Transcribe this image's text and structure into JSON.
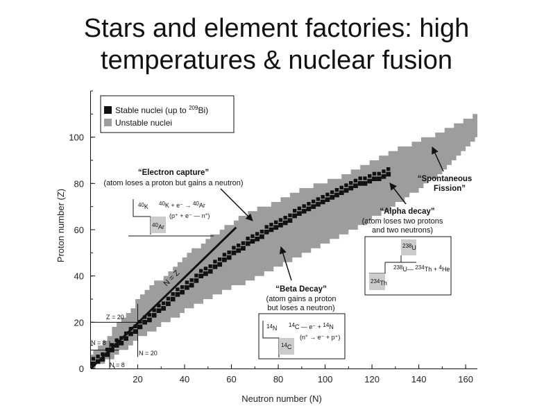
{
  "title_line1": "Stars and element factories: high",
  "title_line2": "temperatures & nuclear fusion",
  "chart_data": {
    "type": "scatter",
    "xlabel": "Neutron number (N)",
    "ylabel": "Proton number (Z)",
    "xlim": [
      0,
      165
    ],
    "ylim": [
      0,
      120
    ],
    "xticks": [
      20,
      40,
      60,
      80,
      100,
      120,
      140,
      160
    ],
    "yticks": [
      0,
      20,
      40,
      60,
      80,
      100
    ],
    "legend_position": "top-left",
    "colors": {
      "stable": "#111111",
      "unstable": "#9d9d9d",
      "box": "#cccccc"
    },
    "series": [
      {
        "name": "Stable nuclei (up to 209Bi)",
        "name_main": "Stable nuclei (up to ",
        "name_mass": "209",
        "name_sym": "Bi)",
        "n": [
          0,
          2,
          4,
          6,
          8,
          10,
          12,
          14,
          16,
          18,
          20,
          22,
          24,
          26,
          28,
          30,
          32,
          34,
          36,
          38,
          40,
          42,
          44,
          46,
          48,
          50,
          52,
          54,
          56,
          58,
          60,
          62,
          64,
          66,
          68,
          70,
          72,
          74,
          76,
          78,
          80,
          82,
          84,
          86,
          88,
          90,
          92,
          94,
          96,
          98,
          100,
          102,
          104,
          106,
          108,
          110,
          112,
          114,
          116,
          118,
          120,
          122,
          124,
          126
        ],
        "z": [
          1,
          2,
          3,
          5,
          7,
          9,
          10,
          12,
          14,
          15,
          17,
          19,
          20,
          22,
          24,
          25,
          27,
          29,
          31,
          32,
          34,
          35,
          37,
          39,
          40,
          41,
          43,
          44,
          46,
          47,
          49,
          50,
          51,
          53,
          54,
          55,
          56,
          58,
          59,
          60,
          61,
          62,
          63,
          65,
          66,
          67,
          68,
          69,
          70,
          71,
          72,
          73,
          74,
          75,
          76,
          77,
          78,
          79,
          79,
          80,
          81,
          81,
          82,
          83
        ]
      },
      {
        "name": "Unstable nuclei",
        "n_lower": [
          0,
          10,
          20,
          30,
          40,
          50,
          60,
          70,
          80,
          90,
          100,
          110,
          120,
          130,
          140,
          150,
          160,
          165
        ],
        "z_lower": [
          0,
          6,
          13,
          19,
          25,
          30,
          35,
          39,
          44,
          49,
          54,
          59,
          65,
          71,
          78,
          86,
          95,
          101
        ],
        "n_upper": [
          0,
          10,
          20,
          30,
          40,
          50,
          60,
          70,
          80,
          90,
          100,
          110,
          120,
          130,
          140,
          150,
          160,
          165
        ],
        "z_upper": [
          4,
          16,
          28,
          38,
          47,
          55,
          62,
          68,
          72,
          77,
          80,
          84,
          89,
          94,
          98,
          102,
          107,
          110
        ]
      }
    ],
    "annotations": {
      "nz_line": "N = Z",
      "z20": "Z = 20",
      "n8_upper": "N = 8",
      "n8_lower": "N = 8",
      "n20": "N = 20",
      "electron_capture": {
        "title": "“Electron capture”",
        "desc": "(atom loses a proton but gains a neutron)",
        "parent_mass": "40",
        "parent_sym": "K",
        "eq_part1": "K  +  e⁻  →  ",
        "eq_part2": "Ar",
        "eq_mass1": "40",
        "eq_mass2": "40",
        "sub_eq": "(p⁺ + e⁻ —  n°)",
        "daughter_mass": "40",
        "daughter_sym": "Ar"
      },
      "beta_decay": {
        "title": "“Beta Decay”",
        "desc1": "(atom gains a proton",
        "desc2": "but loses a neutron)",
        "parent_mass": "14",
        "parent_sym": "N",
        "eq_mass1": "14",
        "eq_part1": "C  —  e⁻  +  ",
        "eq_mass2": "14",
        "eq_part2": "N",
        "sub_eq": "(n° → e⁻ + p⁺)",
        "daughter_mass": "14",
        "daughter_sym": "C"
      },
      "alpha_decay": {
        "title": "“Alpha decay”",
        "desc1": "(atom loses two protons",
        "desc2": "and two neutrons)",
        "parent_mass": "238",
        "parent_sym": "U",
        "eq_mass1": "238",
        "eq_part1": "U— ",
        "eq_mass2": "234",
        "eq_part2": "Th  +  ",
        "eq_mass3": "4",
        "eq_part3": "He",
        "daughter_mass": "234",
        "daughter_sym": "Th"
      },
      "spontaneous_fission": {
        "line1": "“Spontaneous",
        "line2": "Fission”"
      }
    }
  }
}
